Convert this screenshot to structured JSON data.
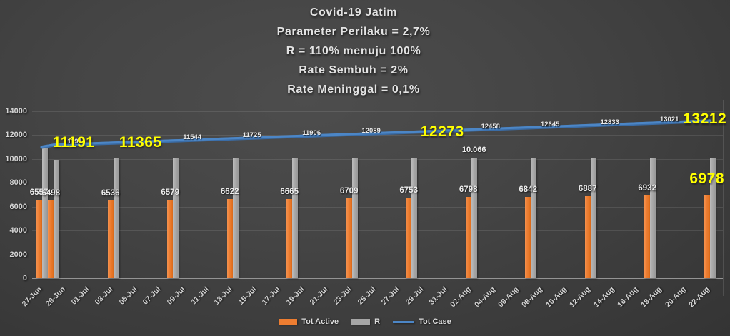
{
  "title": {
    "lines": [
      "Covid-19 Jatim",
      "Parameter Perilaku = 2,7%",
      "R = 110% menuju 100%",
      "Rate Sembuh = 2%",
      "Rate Meninggal = 0,1%"
    ]
  },
  "colors": {
    "tot_active": "#ED7D31",
    "r_bar": "#A6A6A6",
    "tot_case_line": "#4C86C6",
    "highlight_text": "#FFFF00",
    "background": "#424242",
    "axis_text": "#D2D2D2"
  },
  "chart_data": {
    "type": "bar",
    "subtype": "combo bar+line",
    "grid": true,
    "legend_position": "bottom",
    "ylim": [
      0,
      14000
    ],
    "y_ticks": [
      0,
      2000,
      4000,
      6000,
      8000,
      10000,
      12000,
      14000
    ],
    "x_tick_labels": [
      "27-Jun",
      "29-Jun",
      "01-Jul",
      "03-Jul",
      "05-Jul",
      "07-Jul",
      "09-Jul",
      "11-Jul",
      "13-Jul",
      "15-Jul",
      "17-Jul",
      "19-Jul",
      "21-Jul",
      "23-Jul",
      "25-Jul",
      "27-Jul",
      "29-Jul",
      "31-Jul",
      "02-Aug",
      "04-Aug",
      "06-Aug",
      "08-Aug",
      "10-Aug",
      "12-Aug",
      "14-Aug",
      "16-Aug",
      "18-Aug",
      "20-Aug",
      "22-Aug"
    ],
    "x_total_days": 57,
    "points": {
      "dates": [
        "27-Jun",
        "28-Jun",
        "03-Jul",
        "08-Jul",
        "13-Jul",
        "18-Jul",
        "23-Jul",
        "28-Jul",
        "02-Aug",
        "07-Aug",
        "12-Aug",
        "17-Aug",
        "22-Aug"
      ],
      "day_index": [
        0,
        1,
        6,
        11,
        16,
        21,
        26,
        31,
        36,
        41,
        46,
        51,
        56
      ]
    },
    "series": [
      {
        "name": "Tot Active",
        "type": "bar",
        "color": "#ED7D31",
        "values": [
          6557,
          6498,
          6536,
          6579,
          6622,
          6665,
          6709,
          6753,
          6798,
          6842,
          6887,
          6932,
          6978
        ],
        "white_label_indices": [
          0,
          1,
          2,
          3,
          4,
          5,
          6,
          7,
          8,
          9,
          10,
          11
        ]
      },
      {
        "name": "R",
        "type": "bar",
        "color": "#A6A6A6",
        "values": [
          11000,
          9940,
          10066,
          10066,
          10066,
          10066,
          10066,
          10066,
          10066,
          10066,
          10066,
          10066,
          10066
        ],
        "white_label_indices": []
      },
      {
        "name": "Tot Case",
        "type": "line",
        "color": "#4C86C6",
        "values": [
          11020,
          11191,
          11365,
          11544,
          11725,
          11906,
          12089,
          12273,
          12458,
          12645,
          12833,
          13021,
          13212
        ],
        "white_label_indices": [
          1,
          3,
          4,
          5,
          6,
          8,
          9,
          10,
          11
        ]
      }
    ],
    "highlights": [
      {
        "text": "11191",
        "series": "Tot Case",
        "point_index": 1
      },
      {
        "text": "11365",
        "series": "Tot Case",
        "point_index": 2
      },
      {
        "text": "12273",
        "series": "Tot Case",
        "point_index": 7
      },
      {
        "text": "13212",
        "series": "Tot Case",
        "point_index": 12
      },
      {
        "text": "6978",
        "series": "Tot Active",
        "point_index": 12
      }
    ],
    "annotations": [
      {
        "text": "10.066",
        "series": "R",
        "point_index": 8
      }
    ]
  },
  "legend": {
    "items": [
      {
        "label": "Tot Active"
      },
      {
        "label": "R"
      },
      {
        "label": "Tot Case"
      }
    ]
  }
}
